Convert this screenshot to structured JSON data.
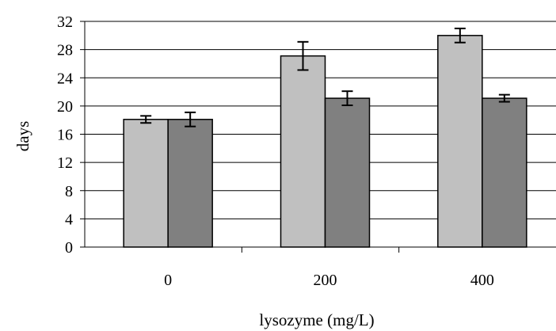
{
  "chart_data": {
    "type": "bar",
    "title": "",
    "xlabel": "lysozyme (mg/L)",
    "ylabel": "days",
    "categories": [
      "0",
      "200",
      "400"
    ],
    "series": [
      {
        "values": [
          18.1,
          27.1,
          30.0
        ],
        "error": [
          0.5,
          2.0,
          1.0
        ],
        "color": "#c0c0c0"
      },
      {
        "values": [
          18.1,
          21.1,
          21.1
        ],
        "error": [
          1.0,
          1.0,
          0.5
        ],
        "color": "#808080"
      }
    ],
    "ylim": [
      0,
      32
    ],
    "yticks": [
      "0",
      "4",
      "8",
      "12",
      "16",
      "20",
      "24",
      "28",
      "32"
    ],
    "grid": true,
    "legend": "none"
  }
}
